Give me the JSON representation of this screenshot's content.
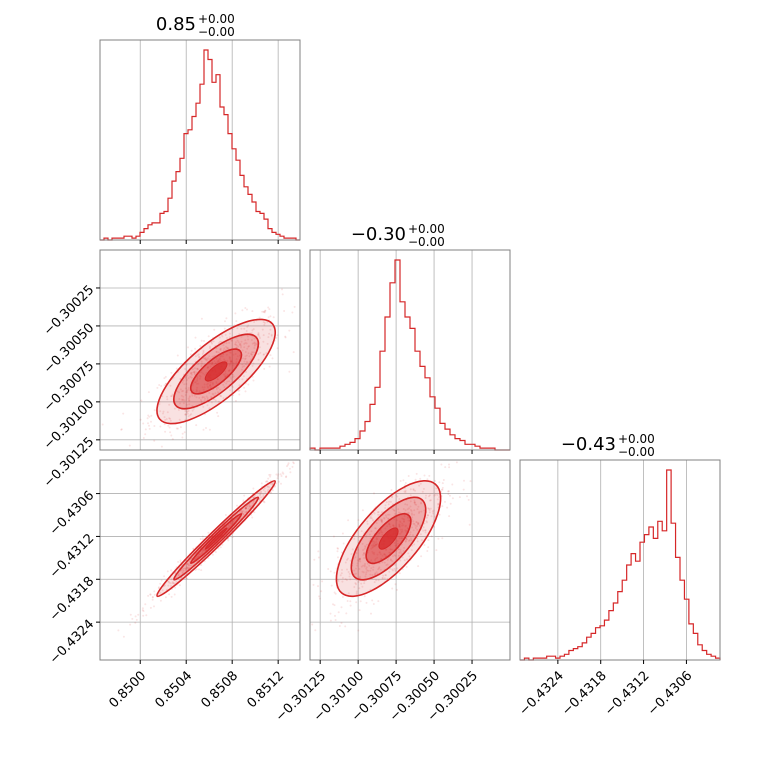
{
  "chart_data": {
    "type": "corner",
    "accent_color": "#d62728",
    "grid": true,
    "params": [
      {
        "title_value": "0.85",
        "title_plus": "+0.00",
        "title_minus": "−0.00",
        "range": [
          0.84965,
          0.85139
        ],
        "ticks": [
          0.85,
          0.8504,
          0.8508,
          0.8512
        ],
        "tick_labels": [
          "0.8500",
          "0.8504",
          "0.8508",
          "0.8512"
        ],
        "center": 0.85066,
        "sigma": 0.00021
      },
      {
        "title_value": "−0.30",
        "title_plus": "+0.00",
        "title_minus": "−0.00",
        "range": [
          -0.301317,
          -0.3
        ],
        "ticks": [
          -0.30125,
          -0.301,
          -0.30075,
          -0.3005,
          -0.30025
        ],
        "tick_labels": [
          "−0.30125",
          "−0.30100",
          "−0.30075",
          "−0.30050",
          "−0.30025"
        ],
        "center": -0.3008,
        "sigma": 0.00014
      },
      {
        "title_value": "−0.43",
        "title_plus": "+0.00",
        "title_minus": "−0.00",
        "range": [
          -0.43293,
          -0.43013
        ],
        "ticks": [
          -0.4324,
          -0.4318,
          -0.4312,
          -0.4306
        ],
        "tick_labels": [
          "−0.4324",
          "−0.4318",
          "−0.4312",
          "−0.4306"
        ],
        "center": -0.43123,
        "sigma": 0.00033
      }
    ],
    "histograms": [
      {
        "bins": 50,
        "counts": [
          0,
          1,
          0,
          1,
          1,
          1,
          2,
          2,
          1,
          2,
          4,
          6,
          8,
          9,
          9,
          14,
          15,
          22,
          31,
          36,
          43,
          56,
          58,
          65,
          72,
          82,
          100,
          95,
          83,
          87,
          70,
          66,
          56,
          48,
          42,
          34,
          28,
          24,
          20,
          15,
          14,
          11,
          6,
          4,
          3,
          2,
          1,
          1,
          1,
          0
        ]
      },
      {
        "bins": 40,
        "counts": [
          1,
          0,
          1,
          1,
          1,
          1,
          2,
          3,
          4,
          6,
          10,
          15,
          24,
          33,
          52,
          70,
          88,
          100,
          78,
          70,
          64,
          52,
          44,
          38,
          28,
          22,
          14,
          11,
          8,
          6,
          5,
          3,
          3,
          2,
          1,
          1,
          1,
          0,
          0,
          0
        ]
      },
      {
        "bins": 45,
        "counts": [
          0,
          1,
          0,
          1,
          1,
          1,
          2,
          2,
          1,
          2,
          3,
          5,
          6,
          7,
          9,
          12,
          14,
          17,
          18,
          21,
          26,
          30,
          36,
          42,
          50,
          56,
          52,
          62,
          66,
          70,
          64,
          73,
          68,
          100,
          72,
          54,
          42,
          32,
          19,
          14,
          8,
          5,
          3,
          2,
          1
        ]
      }
    ],
    "correlations": {
      "1_0": 0.75,
      "2_0": 0.985,
      "2_1": 0.7
    }
  }
}
